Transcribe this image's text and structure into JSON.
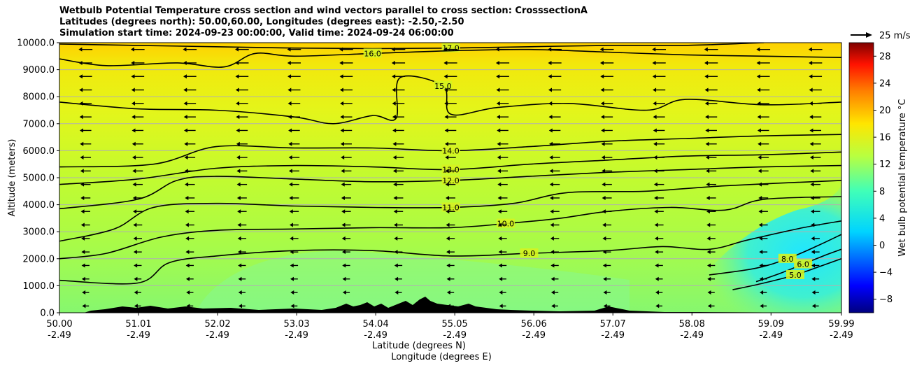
{
  "chart_data": {
    "type": "heatmap",
    "title_lines": [
      "Wetbulb Potential Temperature cross section and wind vectors parallel to cross section: CrosssectionA",
      "Latitudes (degrees north): 50.00,60.00, Longitudes (degrees east): -2.50,-2.50",
      "Simulation start time: 2024-09-23 00:00:00, Valid time: 2024-09-24 06:00:00"
    ],
    "ylabel": "Altitude (meters)",
    "xlabel_lat": "Latitude (degrees N)",
    "xlabel_lon": "Longitude (degrees E)",
    "xlim": [
      50.0,
      59.99
    ],
    "ylim": [
      0,
      10000
    ],
    "grid": "horizontal",
    "x_ticks": [
      {
        "lat": "50.00",
        "lon": "-2.49"
      },
      {
        "lat": "51.01",
        "lon": "-2.49"
      },
      {
        "lat": "52.02",
        "lon": "-2.49"
      },
      {
        "lat": "53.03",
        "lon": "-2.49"
      },
      {
        "lat": "54.04",
        "lon": "-2.49"
      },
      {
        "lat": "55.05",
        "lon": "-2.49"
      },
      {
        "lat": "56.06",
        "lon": "-2.49"
      },
      {
        "lat": "57.07",
        "lon": "-2.49"
      },
      {
        "lat": "58.08",
        "lon": "-2.49"
      },
      {
        "lat": "59.09",
        "lon": "-2.49"
      },
      {
        "lat": "59.99",
        "lon": "-2.49"
      }
    ],
    "y_ticks": [
      "0.0",
      "1000.0",
      "2000.0",
      "3000.0",
      "4000.0",
      "5000.0",
      "6000.0",
      "7000.0",
      "8000.0",
      "9000.0",
      "10000.0"
    ],
    "colorbar": {
      "label": "Wet bulb potential temperature $^\\circ$C",
      "label_display": "Wet bulb potential temperature °C",
      "ticks": [
        -8,
        -4,
        0,
        4,
        8,
        12,
        16,
        20,
        24,
        28
      ],
      "range": [
        -10,
        30
      ]
    },
    "quiver_key": "25 m/s",
    "contour_levels": [
      {
        "value": 17.0,
        "points": [
          [
            50.0,
            9950
          ],
          [
            51.0,
            9900
          ],
          [
            52.0,
            9850
          ],
          [
            53.0,
            9800
          ],
          [
            54.0,
            9780
          ],
          [
            55.0,
            9800
          ],
          [
            56.0,
            9850
          ],
          [
            57.0,
            9900
          ],
          [
            58.0,
            9900
          ],
          [
            59.0,
            10000
          ]
        ]
      },
      {
        "value": 16.0,
        "points": [
          [
            50.0,
            9400
          ],
          [
            50.6,
            9150
          ],
          [
            51.5,
            9250
          ],
          [
            52.1,
            9100
          ],
          [
            52.5,
            9600
          ],
          [
            53.0,
            9500
          ],
          [
            54.0,
            9600
          ],
          [
            55.0,
            9700
          ],
          [
            56.0,
            9750
          ],
          [
            57.0,
            9650
          ],
          [
            58.0,
            9550
          ],
          [
            59.0,
            9500
          ],
          [
            59.99,
            9450
          ]
        ]
      },
      {
        "value": 15.0,
        "points": [
          [
            50.0,
            7800
          ],
          [
            51.0,
            7550
          ],
          [
            52.0,
            7500
          ],
          [
            53.0,
            7250
          ],
          [
            53.5,
            7000
          ],
          [
            54.0,
            7300
          ],
          [
            54.3,
            7200
          ],
          [
            54.35,
            8700
          ],
          [
            54.9,
            8400
          ],
          [
            55.0,
            7350
          ],
          [
            55.6,
            7600
          ],
          [
            56.5,
            7750
          ],
          [
            57.5,
            7500
          ],
          [
            58.0,
            7900
          ],
          [
            59.0,
            7700
          ],
          [
            59.99,
            7800
          ]
        ]
      },
      {
        "value": 14.0,
        "points": [
          [
            50.0,
            5400
          ],
          [
            51.2,
            5500
          ],
          [
            52.0,
            6150
          ],
          [
            53.0,
            6100
          ],
          [
            54.0,
            6100
          ],
          [
            55.0,
            6000
          ],
          [
            56.0,
            6150
          ],
          [
            57.0,
            6350
          ],
          [
            58.0,
            6450
          ],
          [
            59.0,
            6550
          ],
          [
            59.99,
            6600
          ]
        ]
      },
      {
        "value": 13.0,
        "points": [
          [
            50.0,
            4750
          ],
          [
            51.0,
            4950
          ],
          [
            52.0,
            5350
          ],
          [
            53.0,
            5450
          ],
          [
            54.0,
            5400
          ],
          [
            55.0,
            5300
          ],
          [
            56.0,
            5500
          ],
          [
            57.0,
            5650
          ],
          [
            58.0,
            5800
          ],
          [
            59.0,
            5850
          ],
          [
            59.99,
            5950
          ]
        ]
      },
      {
        "value": 12.0,
        "points": [
          [
            50.0,
            3850
          ],
          [
            51.0,
            4200
          ],
          [
            51.5,
            4900
          ],
          [
            52.0,
            5050
          ],
          [
            53.0,
            4950
          ],
          [
            54.0,
            4850
          ],
          [
            55.0,
            4900
          ],
          [
            56.0,
            5050
          ],
          [
            57.0,
            5200
          ],
          [
            58.0,
            5300
          ],
          [
            59.0,
            5400
          ],
          [
            59.99,
            5450
          ]
        ]
      },
      {
        "value": 11.0,
        "points": [
          [
            50.0,
            2650
          ],
          [
            50.7,
            3100
          ],
          [
            51.2,
            3900
          ],
          [
            52.0,
            4050
          ],
          [
            53.0,
            3950
          ],
          [
            54.0,
            3900
          ],
          [
            55.0,
            3900
          ],
          [
            55.8,
            4050
          ],
          [
            56.5,
            4450
          ],
          [
            57.5,
            4500
          ],
          [
            58.5,
            4700
          ],
          [
            59.99,
            4900
          ]
        ]
      },
      {
        "value": 10.0,
        "points": [
          [
            50.0,
            2000
          ],
          [
            50.6,
            2200
          ],
          [
            51.3,
            2800
          ],
          [
            52.0,
            3050
          ],
          [
            53.0,
            3100
          ],
          [
            54.0,
            3150
          ],
          [
            55.0,
            3150
          ],
          [
            55.7,
            3300
          ],
          [
            56.4,
            3500
          ],
          [
            57.0,
            3750
          ],
          [
            57.8,
            3900
          ],
          [
            58.5,
            3800
          ],
          [
            59.0,
            4200
          ],
          [
            59.99,
            4300
          ]
        ]
      },
      {
        "value": 9.0,
        "points": [
          [
            50.0,
            1200
          ],
          [
            51.0,
            1100
          ],
          [
            51.4,
            1850
          ],
          [
            52.0,
            2100
          ],
          [
            53.0,
            2300
          ],
          [
            54.0,
            2300
          ],
          [
            55.0,
            2100
          ],
          [
            56.0,
            2200
          ],
          [
            57.0,
            2300
          ],
          [
            57.7,
            2450
          ],
          [
            58.3,
            2350
          ],
          [
            58.8,
            2700
          ],
          [
            59.5,
            3150
          ],
          [
            59.99,
            3400
          ]
        ]
      },
      {
        "value": 8.0,
        "points": [
          [
            58.3,
            1400
          ],
          [
            58.9,
            1650
          ],
          [
            59.3,
            2000
          ],
          [
            59.7,
            2500
          ],
          [
            59.99,
            2900
          ]
        ]
      },
      {
        "value": 6.0,
        "points": [
          [
            58.9,
            1150
          ],
          [
            59.2,
            1450
          ],
          [
            59.5,
            1800
          ],
          [
            59.8,
            2150
          ],
          [
            59.99,
            2350
          ]
        ]
      },
      {
        "value": 5.0,
        "points": [
          [
            58.6,
            850
          ],
          [
            59.0,
            1100
          ],
          [
            59.4,
            1400
          ],
          [
            59.7,
            1700
          ],
          [
            59.99,
            2000
          ]
        ]
      }
    ]
  }
}
